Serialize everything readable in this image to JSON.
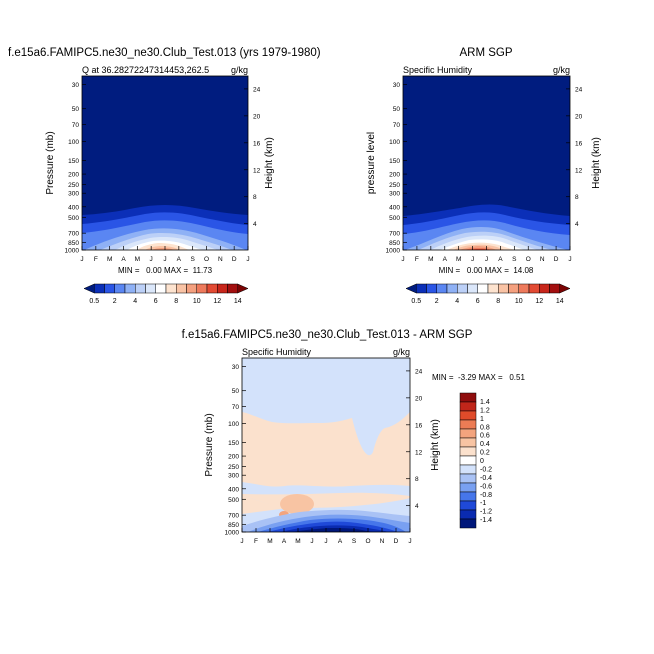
{
  "colors": {
    "abs_scale": [
      "#001c7f",
      "#0b2fb8",
      "#2a55e6",
      "#5a86f2",
      "#8fb1f5",
      "#bcd0f7",
      "#dbe7fa",
      "#ffffff",
      "#fde3cf",
      "#f9c3a5",
      "#f4a07f",
      "#ee7a5c",
      "#e24a33",
      "#c8261b",
      "#a30f0f",
      "#7a0303"
    ],
    "diff_scale": [
      "#00177a",
      "#0a2bb0",
      "#1f49d8",
      "#4676ea",
      "#79a0f1",
      "#a9c2f5",
      "#d3e2fb",
      "#ffffff",
      "#fbe1cd",
      "#f8c4a3",
      "#f3a47e",
      "#ec7c55",
      "#e04b2a",
      "#c0261a",
      "#8f0d0d"
    ]
  },
  "chart_data": [
    {
      "type": "heatmap",
      "panel": "model",
      "title": "f.e15a6.FAMIPC5.ne30_ne30.Club_Test.013 (yrs 1979-1980)",
      "left_label": "Q at 36.28272247314453,262.5",
      "units": "g/kg",
      "ylabel": "Pressure (mb)",
      "right_label": "Height (km)",
      "x_ticks": [
        "J",
        "F",
        "M",
        "A",
        "M",
        "J",
        "J",
        "A",
        "S",
        "O",
        "N",
        "D",
        "J"
      ],
      "y_ticks": [
        "30",
        "50",
        "70",
        "100",
        "150",
        "200",
        "250",
        "300",
        "400",
        "500",
        "700",
        "850",
        "1000"
      ],
      "height_ticks": [
        "24",
        "20",
        "16",
        "12",
        "8",
        "4"
      ],
      "stats": "MIN =   0.00 MAX =  11.73",
      "min": 0.0,
      "max": 11.73
    },
    {
      "type": "heatmap",
      "panel": "obs",
      "title": "ARM SGP",
      "left_label": "Specific Humidity",
      "units": "g/kg",
      "ylabel": "pressure level",
      "right_label": "Height (km)",
      "x_ticks": [
        "J",
        "F",
        "M",
        "A",
        "M",
        "J",
        "J",
        "A",
        "S",
        "O",
        "N",
        "D",
        "J"
      ],
      "y_ticks": [
        "30",
        "50",
        "70",
        "100",
        "150",
        "200",
        "250",
        "300",
        "400",
        "500",
        "700",
        "850",
        "1000"
      ],
      "height_ticks": [
        "24",
        "20",
        "16",
        "12",
        "8",
        "4"
      ],
      "stats": "MIN =   0.00 MAX =  14.08",
      "min": 0.0,
      "max": 14.08
    },
    {
      "type": "heatmap",
      "panel": "diff",
      "title": "f.e15a6.FAMIPC5.ne30_ne30.Club_Test.013 - ARM SGP",
      "left_label": "Specific Humidity",
      "units": "g/kg",
      "ylabel": "Pressure (mb)",
      "right_label": "Height (km)",
      "x_ticks": [
        "J",
        "F",
        "M",
        "A",
        "M",
        "J",
        "J",
        "A",
        "S",
        "O",
        "N",
        "D",
        "J"
      ],
      "y_ticks": [
        "30",
        "50",
        "70",
        "100",
        "150",
        "200",
        "250",
        "300",
        "400",
        "500",
        "700",
        "850",
        "1000"
      ],
      "height_ticks": [
        "24",
        "20",
        "16",
        "12",
        "8",
        "4"
      ],
      "stats": "MIN =  -3.29 MAX =   0.51",
      "min": -3.29,
      "max": 0.51
    }
  ],
  "abs_colorbar": {
    "labels": [
      "0.5",
      "2",
      "4",
      "6",
      "8",
      "10",
      "12",
      "14"
    ]
  },
  "diff_colorbar": {
    "labels": [
      "1.4",
      "1.2",
      "1",
      "0.8",
      "0.6",
      "0.4",
      "0.2",
      "0",
      "-0.2",
      "-0.4",
      "-0.6",
      "-0.8",
      "-1",
      "-1.2",
      "-1.4"
    ]
  }
}
